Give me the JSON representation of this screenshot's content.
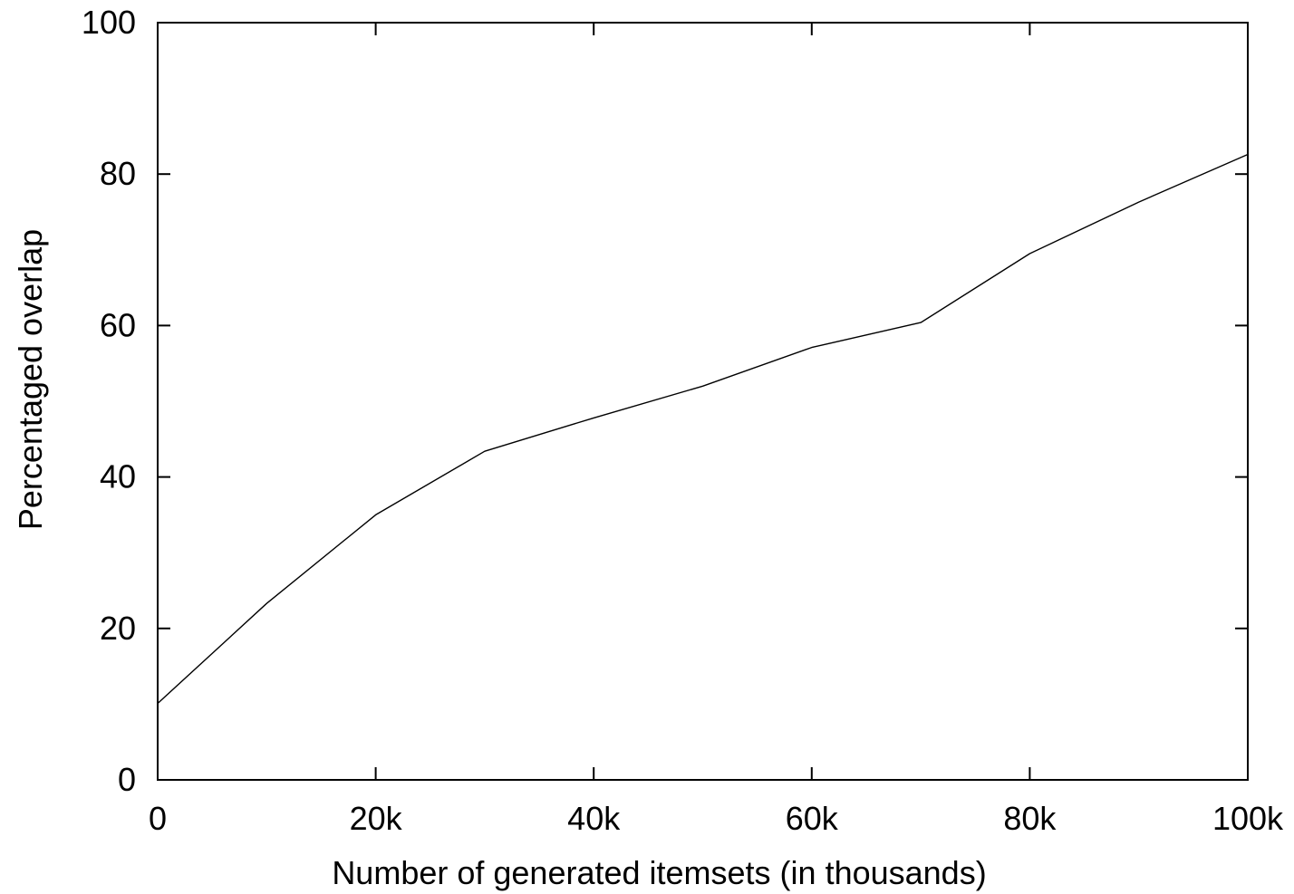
{
  "chart_data": {
    "type": "line",
    "title": "",
    "xlabel": "Number of generated itemsets (in thousands)",
    "ylabel": "Percentaged overlap",
    "xlim": [
      0,
      100000
    ],
    "ylim": [
      0,
      100
    ],
    "x_ticks": [
      {
        "value": 0,
        "label": "0"
      },
      {
        "value": 20000,
        "label": "20k"
      },
      {
        "value": 40000,
        "label": "40k"
      },
      {
        "value": 60000,
        "label": "60k"
      },
      {
        "value": 80000,
        "label": "80k"
      },
      {
        "value": 100000,
        "label": "100k"
      }
    ],
    "y_ticks": [
      {
        "value": 0,
        "label": "0"
      },
      {
        "value": 20,
        "label": "20"
      },
      {
        "value": 40,
        "label": "40"
      },
      {
        "value": 60,
        "label": "60"
      },
      {
        "value": 80,
        "label": "80"
      },
      {
        "value": 100,
        "label": "100"
      }
    ],
    "grid": false,
    "legend": "none",
    "series": [
      {
        "color": "#000000",
        "x": [
          0,
          10000,
          20000,
          30000,
          40000,
          50000,
          60000,
          70000,
          80000,
          90000,
          100000
        ],
        "y": [
          10.1,
          23.3,
          35.0,
          43.4,
          47.8,
          52.0,
          57.1,
          60.4,
          69.5,
          76.3,
          82.6
        ]
      }
    ]
  }
}
